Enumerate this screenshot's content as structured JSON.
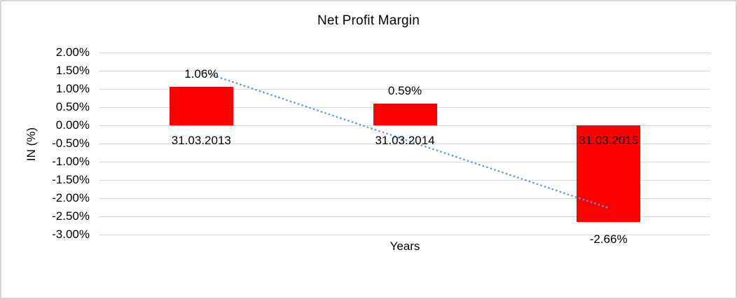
{
  "chart_data": {
    "type": "bar",
    "title": "Net Profit Margin",
    "xlabel": "Years",
    "ylabel": "IN (%)",
    "categories": [
      "31.03.2013",
      "31.03.2014",
      "31.03.2015"
    ],
    "values": [
      1.06,
      0.59,
      -2.66
    ],
    "data_labels": [
      "1.06%",
      "0.59%",
      "-2.66%"
    ],
    "y_ticks": [
      "2.00%",
      "1.50%",
      "1.00%",
      "0.50%",
      "0.00%",
      "-0.50%",
      "-1.00%",
      "-1.50%",
      "-2.00%",
      "-2.50%",
      "-3.00%"
    ],
    "y_tick_values": [
      2,
      1.5,
      1,
      0.5,
      0,
      -0.5,
      -1,
      -1.5,
      -2,
      -2.5,
      -3
    ],
    "ylim": [
      -3,
      2
    ],
    "grid": true,
    "legend": false,
    "bar_color": "#ff0000",
    "gridline_color": "#d9d9d9",
    "trendline": {
      "style": "dotted",
      "color": "#5b9bd5",
      "start_value": 1.48,
      "end_value": -2.27
    }
  }
}
